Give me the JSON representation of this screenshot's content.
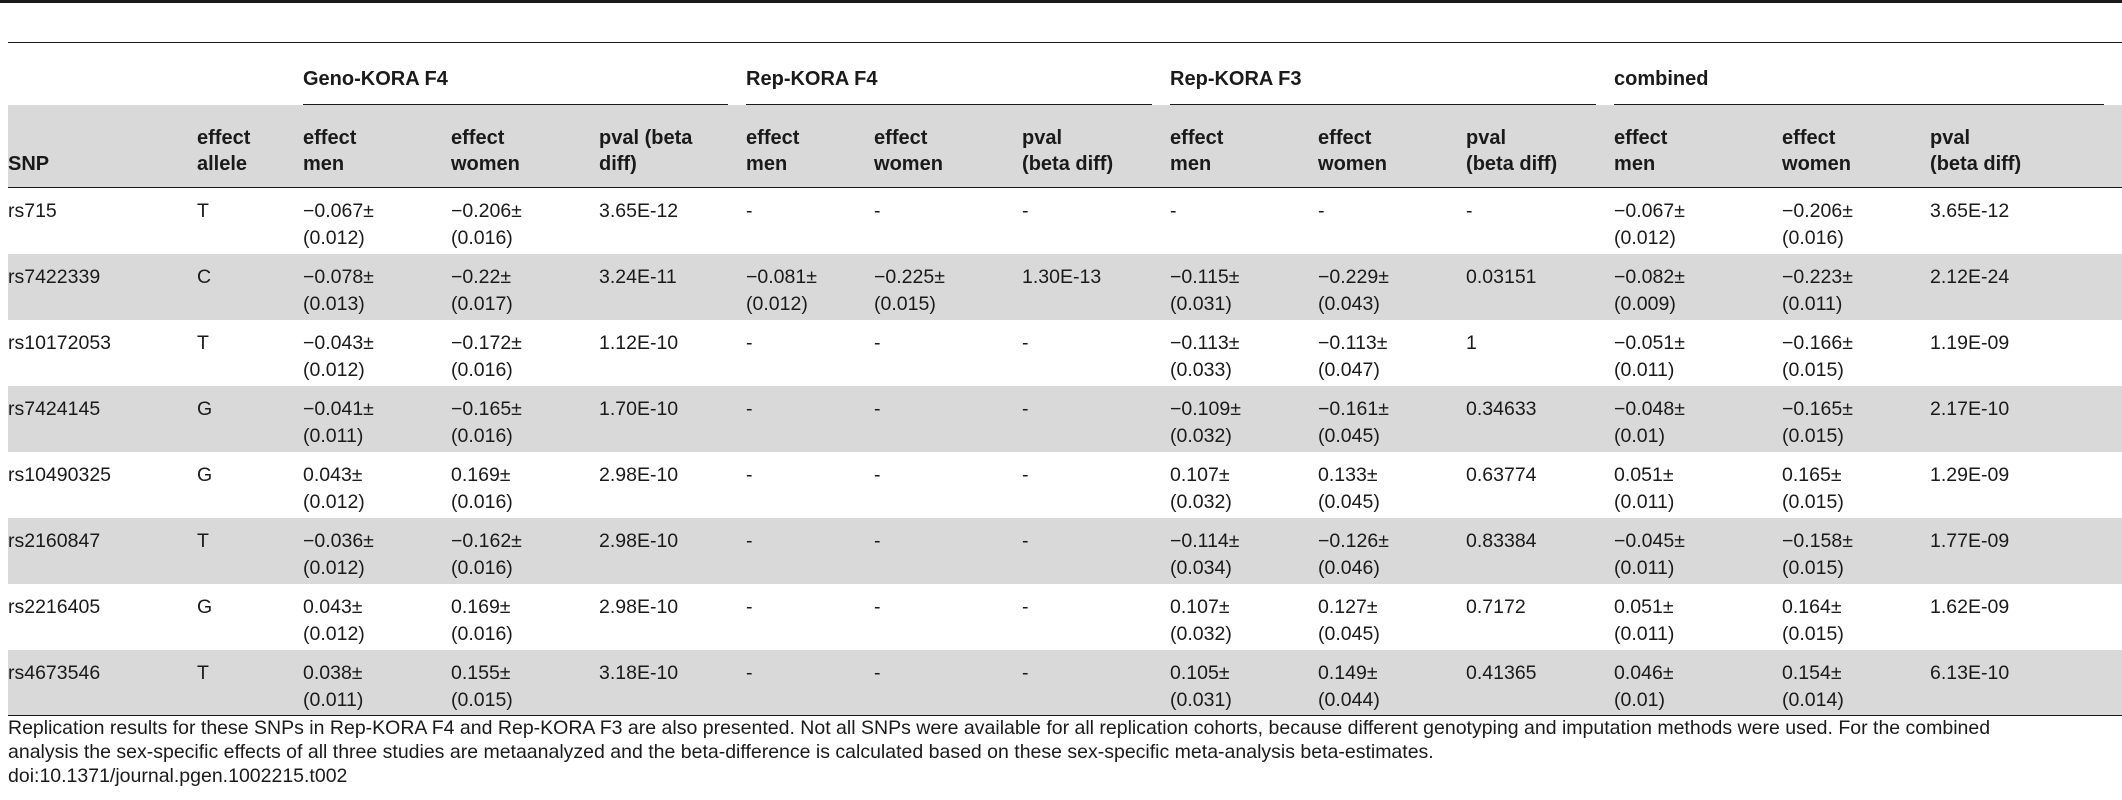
{
  "table": {
    "groups": [
      "Geno-KORA F4",
      "Rep-KORA F4",
      "Rep-KORA F3",
      "combined"
    ],
    "headers": [
      [
        "SNP"
      ],
      [
        "effect",
        "allele"
      ],
      [
        "effect",
        "men"
      ],
      [
        "effect",
        "women"
      ],
      [
        "pval (beta",
        "diff)"
      ],
      [
        "effect",
        "men"
      ],
      [
        "effect",
        "women"
      ],
      [
        "pval",
        "(beta diff)"
      ],
      [
        "effect",
        "men"
      ],
      [
        "effect",
        "women"
      ],
      [
        "pval",
        "(beta diff)"
      ],
      [
        "effect",
        "men"
      ],
      [
        "effect",
        "women"
      ],
      [
        "pval",
        "(beta diff)"
      ]
    ],
    "rows": [
      [
        [
          "rs715"
        ],
        [
          "T"
        ],
        [
          "−0.067±",
          "(0.012)"
        ],
        [
          "−0.206±",
          "(0.016)"
        ],
        [
          "3.65E-12"
        ],
        [
          "-"
        ],
        [
          "-"
        ],
        [
          "-"
        ],
        [
          "-"
        ],
        [
          "-"
        ],
        [
          "-"
        ],
        [
          "−0.067±",
          "(0.012)"
        ],
        [
          "−0.206±",
          "(0.016)"
        ],
        [
          "3.65E-12"
        ]
      ],
      [
        [
          "rs7422339"
        ],
        [
          "C"
        ],
        [
          "−0.078±",
          "(0.013)"
        ],
        [
          "−0.22±",
          "(0.017)"
        ],
        [
          "3.24E-11"
        ],
        [
          "−0.081±",
          "(0.012)"
        ],
        [
          "−0.225±",
          "(0.015)"
        ],
        [
          "1.30E-13"
        ],
        [
          "−0.115±",
          "(0.031)"
        ],
        [
          "−0.229±",
          "(0.043)"
        ],
        [
          "0.03151"
        ],
        [
          "−0.082±",
          "(0.009)"
        ],
        [
          "−0.223±",
          "(0.011)"
        ],
        [
          "2.12E-24"
        ]
      ],
      [
        [
          "rs10172053"
        ],
        [
          "T"
        ],
        [
          "−0.043±",
          "(0.012)"
        ],
        [
          "−0.172±",
          "(0.016)"
        ],
        [
          "1.12E-10"
        ],
        [
          "-"
        ],
        [
          "-"
        ],
        [
          "-"
        ],
        [
          "−0.113±",
          "(0.033)"
        ],
        [
          "−0.113±",
          "(0.047)"
        ],
        [
          "1"
        ],
        [
          "−0.051±",
          "(0.011)"
        ],
        [
          "−0.166±",
          "(0.015)"
        ],
        [
          "1.19E-09"
        ]
      ],
      [
        [
          "rs7424145"
        ],
        [
          "G"
        ],
        [
          "−0.041±",
          "(0.011)"
        ],
        [
          "−0.165±",
          "(0.016)"
        ],
        [
          "1.70E-10"
        ],
        [
          "-"
        ],
        [
          "-"
        ],
        [
          "-"
        ],
        [
          "−0.109±",
          "(0.032)"
        ],
        [
          "−0.161±",
          "(0.045)"
        ],
        [
          "0.34633"
        ],
        [
          "−0.048±",
          "(0.01)"
        ],
        [
          "−0.165±",
          "(0.015)"
        ],
        [
          "2.17E-10"
        ]
      ],
      [
        [
          "rs10490325"
        ],
        [
          "G"
        ],
        [
          "0.043±",
          "(0.012)"
        ],
        [
          "0.169±",
          "(0.016)"
        ],
        [
          "2.98E-10"
        ],
        [
          "-"
        ],
        [
          "-"
        ],
        [
          "-"
        ],
        [
          "0.107±",
          "(0.032)"
        ],
        [
          "0.133±",
          "(0.045)"
        ],
        [
          "0.63774"
        ],
        [
          "0.051±",
          "(0.011)"
        ],
        [
          "0.165±",
          "(0.015)"
        ],
        [
          "1.29E-09"
        ]
      ],
      [
        [
          "rs2160847"
        ],
        [
          "T"
        ],
        [
          "−0.036±",
          "(0.012)"
        ],
        [
          "−0.162±",
          "(0.016)"
        ],
        [
          "2.98E-10"
        ],
        [
          "-"
        ],
        [
          "-"
        ],
        [
          "-"
        ],
        [
          "−0.114±",
          "(0.034)"
        ],
        [
          "−0.126±",
          "(0.046)"
        ],
        [
          "0.83384"
        ],
        [
          "−0.045±",
          "(0.011)"
        ],
        [
          "−0.158±",
          "(0.015)"
        ],
        [
          "1.77E-09"
        ]
      ],
      [
        [
          "rs2216405"
        ],
        [
          "G"
        ],
        [
          "0.043±",
          "(0.012)"
        ],
        [
          "0.169±",
          "(0.016)"
        ],
        [
          "2.98E-10"
        ],
        [
          "-"
        ],
        [
          "-"
        ],
        [
          "-"
        ],
        [
          "0.107±",
          "(0.032)"
        ],
        [
          "0.127±",
          "(0.045)"
        ],
        [
          "0.7172"
        ],
        [
          "0.051±",
          "(0.011)"
        ],
        [
          "0.164±",
          "(0.015)"
        ],
        [
          "1.62E-09"
        ]
      ],
      [
        [
          "rs4673546"
        ],
        [
          "T"
        ],
        [
          "0.038±",
          "(0.011)"
        ],
        [
          "0.155±",
          "(0.015)"
        ],
        [
          "3.18E-10"
        ],
        [
          "-"
        ],
        [
          "-"
        ],
        [
          "-"
        ],
        [
          "0.105±",
          "(0.031)"
        ],
        [
          "0.149±",
          "(0.044)"
        ],
        [
          "0.41365"
        ],
        [
          "0.046±",
          "(0.01)"
        ],
        [
          "0.154±",
          "(0.014)"
        ],
        [
          "6.13E-10"
        ]
      ]
    ]
  },
  "caption": {
    "line1": "Replication results for these SNPs in Rep-KORA F4 and Rep-KORA F3 are also presented. Not all SNPs were available for all replication cohorts, because different genotyping and imputation methods were used. For the combined",
    "line2": "analysis the sex-specific effects of all three studies are metaanalyzed and the beta-difference is calculated based on these sex-specific meta-analysis beta-estimates.",
    "doi": "doi:10.1371/journal.pgen.1002215.t002"
  }
}
